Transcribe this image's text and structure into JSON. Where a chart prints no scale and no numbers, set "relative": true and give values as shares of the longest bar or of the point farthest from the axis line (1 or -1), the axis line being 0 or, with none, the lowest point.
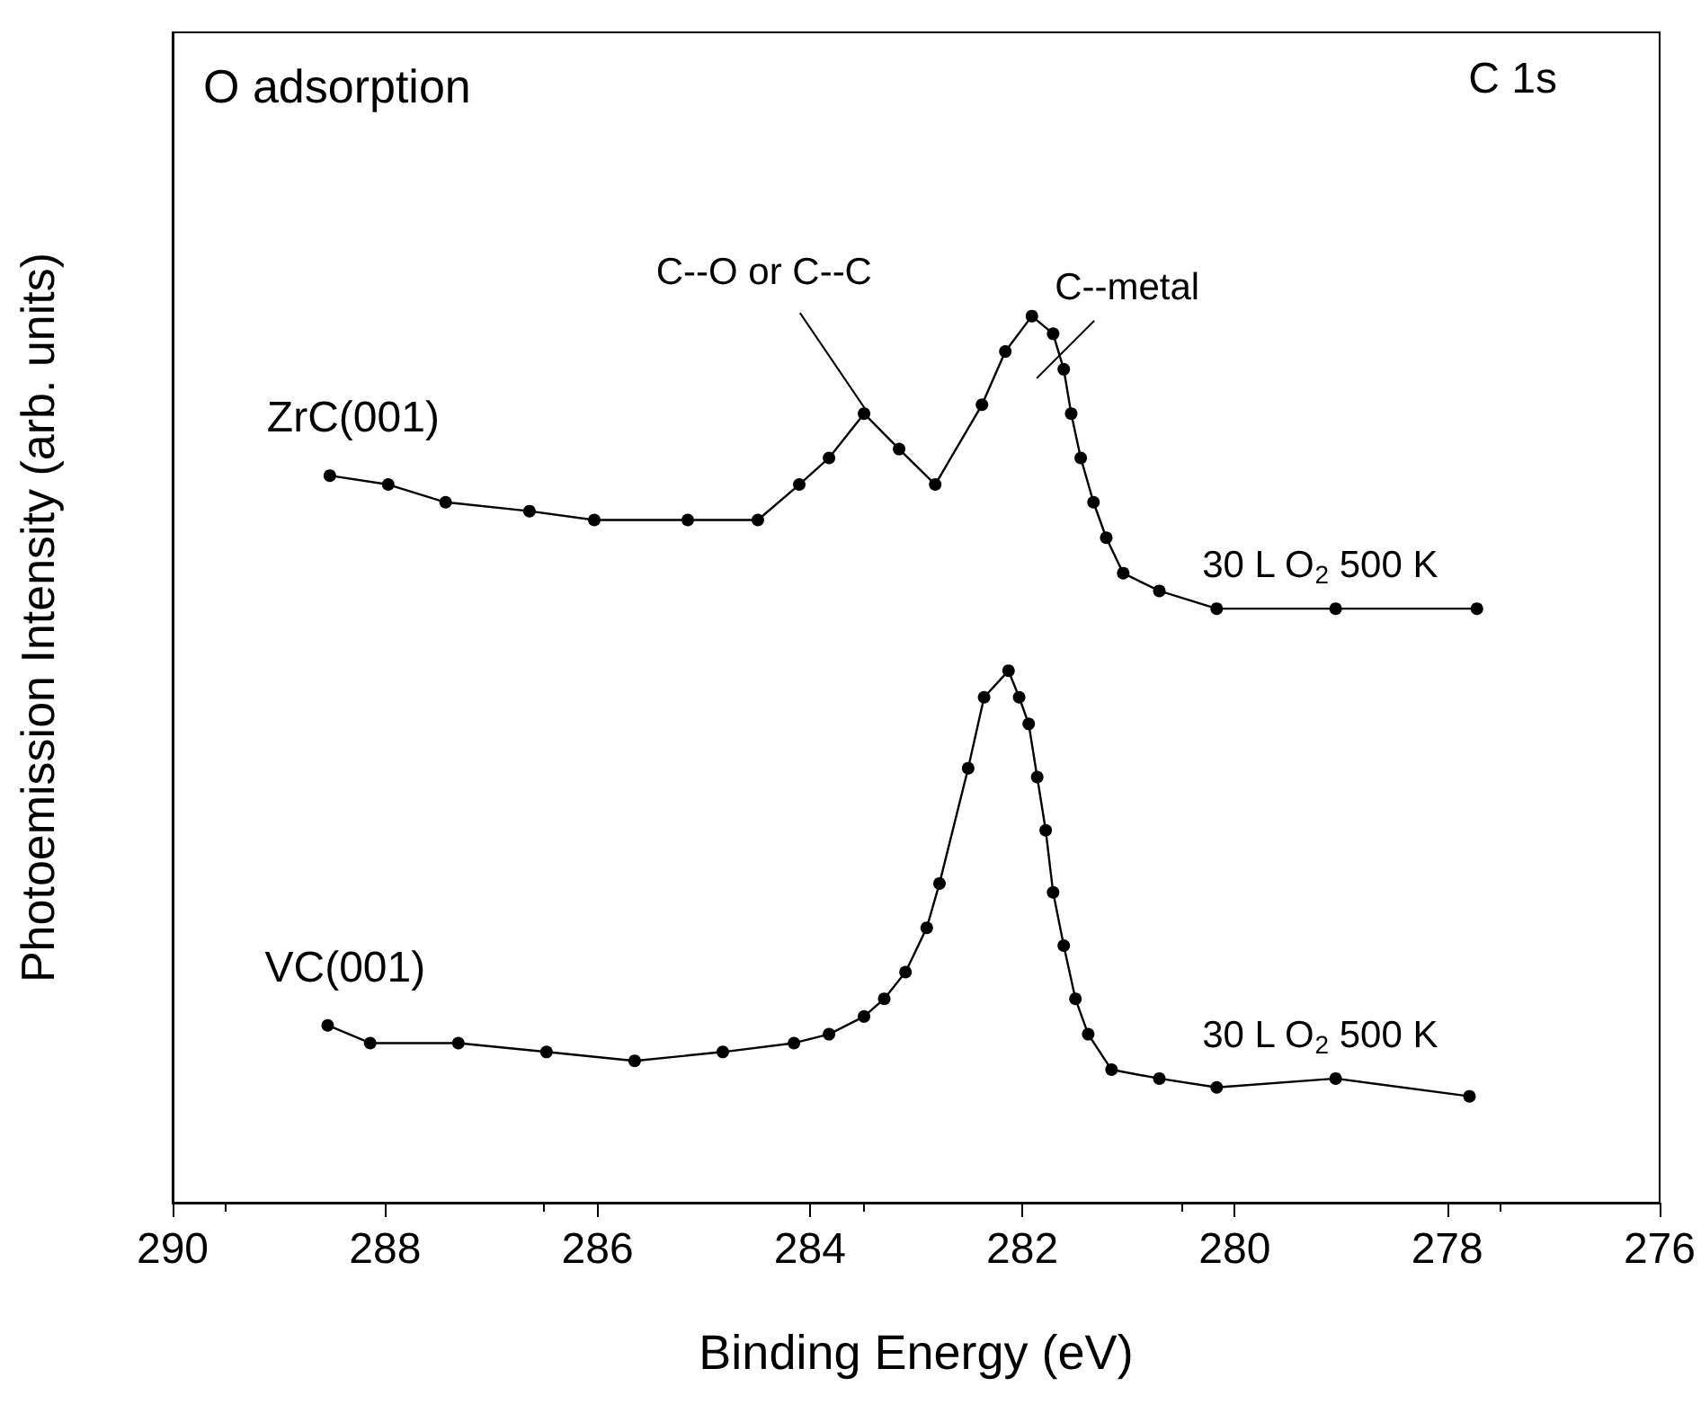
{
  "chart_data": {
    "type": "line",
    "title": "O adsorption",
    "xlabel": "Binding Energy (eV)",
    "ylabel": "Photoemission Intensity (arb. units)",
    "relative": true,
    "marker": "circle",
    "line_style": "solid",
    "grid": false,
    "legend": false,
    "xlim": [
      290,
      276
    ],
    "xticks": [
      290,
      288,
      286,
      284,
      282,
      280,
      278,
      276
    ],
    "series": [
      {
        "name": "ZrC(001)",
        "color": "#000000",
        "x": [
          288.52,
          287.97,
          287.43,
          286.64,
          286.03,
          285.15,
          284.49,
          284.1,
          283.82,
          283.49,
          283.16,
          282.82,
          282.38,
          282.16,
          281.91,
          281.71,
          281.61,
          281.54,
          281.45,
          281.33,
          281.21,
          281.05,
          280.71,
          280.17,
          279.05,
          277.72
        ],
        "values": [
          0.82,
          0.81,
          0.79,
          0.78,
          0.77,
          0.77,
          0.77,
          0.81,
          0.84,
          0.89,
          0.85,
          0.81,
          0.9,
          0.96,
          1.0,
          0.98,
          0.94,
          0.89,
          0.84,
          0.79,
          0.75,
          0.71,
          0.69,
          0.67,
          0.67,
          0.67
        ]
      },
      {
        "name": "VC(001)",
        "color": "#000000",
        "x": [
          288.54,
          288.14,
          287.31,
          286.48,
          285.65,
          284.82,
          284.15,
          283.82,
          283.49,
          283.3,
          283.1,
          282.9,
          282.78,
          282.51,
          282.36,
          282.13,
          282.03,
          281.94,
          281.86,
          281.78,
          281.71,
          281.61,
          281.5,
          281.38,
          281.16,
          280.71,
          280.17,
          279.05,
          277.79
        ],
        "values": [
          0.2,
          0.18,
          0.18,
          0.17,
          0.16,
          0.17,
          0.18,
          0.19,
          0.21,
          0.23,
          0.26,
          0.31,
          0.36,
          0.49,
          0.57,
          0.6,
          0.57,
          0.54,
          0.48,
          0.42,
          0.35,
          0.29,
          0.23,
          0.19,
          0.15,
          0.14,
          0.13,
          0.14,
          0.12
        ]
      }
    ],
    "annotations": [
      "C 1s",
      {
        "text": "C--O or C--C",
        "x": 283.45,
        "y": 0.89
      },
      {
        "text": "C--metal",
        "x": 281.61,
        "y": 0.94
      },
      {
        "text": "30 L O$_{2}$ 500 K",
        "x": 279.2,
        "y": 0.67
      },
      {
        "text": "30 L O$_{2}$ 500 K",
        "x": 279.2,
        "y": 0.14
      }
    ]
  }
}
